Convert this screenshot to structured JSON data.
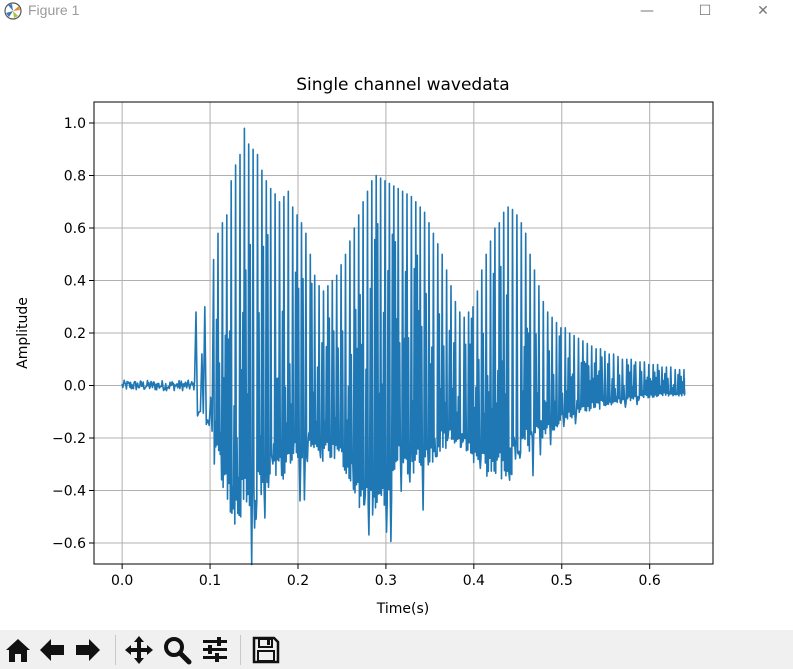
{
  "window": {
    "title": "Figure 1",
    "controls": {
      "minimize": "—",
      "maximize": "☐",
      "close": "✕"
    }
  },
  "toolbar": {
    "buttons": [
      {
        "icon": "home-icon"
      },
      {
        "icon": "back-arrow-icon"
      },
      {
        "icon": "forward-arrow-icon"
      },
      {
        "icon": "pan-icon"
      },
      {
        "icon": "zoom-icon"
      },
      {
        "icon": "configure-subplots-icon"
      },
      {
        "icon": "save-icon"
      }
    ]
  },
  "colors": {
    "line": "#1f77b4",
    "grid": "#b0b0b0",
    "axes": "#000000"
  },
  "chart_data": {
    "type": "line",
    "title": "Single channel wavedata",
    "xlabel": "Time(s)",
    "ylabel": "Amplitude",
    "xlim": [
      -0.032,
      0.672
    ],
    "ylim": [
      -0.68,
      1.08
    ],
    "xticks": [
      0.0,
      0.1,
      0.2,
      0.3,
      0.4,
      0.5,
      0.6
    ],
    "xtick_labels": [
      "0.0",
      "0.1",
      "0.2",
      "0.3",
      "0.4",
      "0.5",
      "0.6"
    ],
    "yticks": [
      -0.6,
      -0.4,
      -0.2,
      0.0,
      0.2,
      0.4,
      0.6,
      0.8,
      1.0
    ],
    "ytick_labels": [
      "−0.6",
      "−0.4",
      "−0.2",
      "0.0",
      "0.2",
      "0.4",
      "0.6",
      "0.8",
      "1.0"
    ],
    "grid": true,
    "series": [
      {
        "name": "wavedata",
        "x_start": 0.0,
        "x_end": 0.64,
        "signal_onset": 0.083,
        "silence_amplitude": 0.02,
        "peak_times": [
          0.084,
          0.094,
          0.104,
          0.109,
          0.114,
          0.119,
          0.124,
          0.129,
          0.134,
          0.139,
          0.144,
          0.149,
          0.154,
          0.159,
          0.164,
          0.169,
          0.174,
          0.179,
          0.184,
          0.189,
          0.194,
          0.199,
          0.204,
          0.209,
          0.214,
          0.219,
          0.224,
          0.229,
          0.234,
          0.239,
          0.244,
          0.249,
          0.254,
          0.259,
          0.264,
          0.269,
          0.274,
          0.279,
          0.284,
          0.289,
          0.294,
          0.299,
          0.304,
          0.309,
          0.314,
          0.319,
          0.324,
          0.329,
          0.334,
          0.339,
          0.344,
          0.349,
          0.354,
          0.359,
          0.364,
          0.369,
          0.374,
          0.379,
          0.384,
          0.389,
          0.394,
          0.399,
          0.404,
          0.409,
          0.414,
          0.419,
          0.424,
          0.429,
          0.434,
          0.439,
          0.444,
          0.449,
          0.454,
          0.459,
          0.464,
          0.469,
          0.474,
          0.479,
          0.484,
          0.489,
          0.494,
          0.499,
          0.504,
          0.509,
          0.514,
          0.519,
          0.524,
          0.529,
          0.534,
          0.539,
          0.544,
          0.549,
          0.554,
          0.559,
          0.564,
          0.569,
          0.574,
          0.579,
          0.584,
          0.589,
          0.594,
          0.599,
          0.604,
          0.609,
          0.614,
          0.619,
          0.624,
          0.629,
          0.634,
          0.639
        ],
        "peak_values": [
          0.28,
          0.3,
          0.48,
          0.58,
          0.62,
          0.65,
          0.78,
          0.84,
          0.88,
          0.98,
          0.92,
          0.9,
          0.88,
          0.82,
          0.78,
          0.75,
          0.73,
          0.7,
          0.72,
          0.74,
          0.68,
          0.65,
          0.62,
          0.58,
          0.5,
          0.42,
          0.38,
          0.36,
          0.38,
          0.4,
          0.42,
          0.46,
          0.5,
          0.55,
          0.6,
          0.65,
          0.7,
          0.74,
          0.78,
          0.8,
          0.79,
          0.78,
          0.77,
          0.76,
          0.75,
          0.74,
          0.73,
          0.72,
          0.7,
          0.68,
          0.66,
          0.62,
          0.58,
          0.54,
          0.5,
          0.44,
          0.38,
          0.32,
          0.28,
          0.26,
          0.28,
          0.3,
          0.36,
          0.44,
          0.5,
          0.55,
          0.6,
          0.62,
          0.66,
          0.68,
          0.67,
          0.65,
          0.62,
          0.58,
          0.5,
          0.44,
          0.38,
          0.32,
          0.28,
          0.26,
          0.24,
          0.22,
          0.22,
          0.2,
          0.19,
          0.18,
          0.17,
          0.16,
          0.15,
          0.14,
          0.14,
          0.13,
          0.12,
          0.12,
          0.11,
          0.1,
          0.1,
          0.1,
          0.09,
          0.09,
          0.09,
          0.08,
          0.08,
          0.08,
          0.07,
          0.07,
          0.07,
          0.06,
          0.06,
          0.06
        ],
        "trough_values": [
          -0.12,
          -0.2,
          -0.3,
          -0.36,
          -0.42,
          -0.5,
          -0.58,
          -0.55,
          -0.52,
          -0.5,
          -0.48,
          -0.46,
          -0.45,
          -0.44,
          -0.42,
          -0.4,
          -0.38,
          -0.36,
          -0.35,
          -0.34,
          -0.33,
          -0.32,
          -0.32,
          -0.31,
          -0.3,
          -0.3,
          -0.29,
          -0.29,
          -0.29,
          -0.3,
          -0.31,
          -0.33,
          -0.36,
          -0.4,
          -0.44,
          -0.48,
          -0.5,
          -0.52,
          -0.53,
          -0.52,
          -0.5,
          -0.47,
          -0.44,
          -0.4,
          -0.36,
          -0.34,
          -0.34,
          -0.34,
          -0.34,
          -0.33,
          -0.32,
          -0.3,
          -0.28,
          -0.26,
          -0.24,
          -0.22,
          -0.22,
          -0.23,
          -0.24,
          -0.26,
          -0.28,
          -0.3,
          -0.32,
          -0.34,
          -0.36,
          -0.38,
          -0.38,
          -0.37,
          -0.36,
          -0.34,
          -0.32,
          -0.3,
          -0.28,
          -0.26,
          -0.24,
          -0.22,
          -0.2,
          -0.19,
          -0.18,
          -0.17,
          -0.16,
          -0.15,
          -0.14,
          -0.13,
          -0.12,
          -0.11,
          -0.1,
          -0.1,
          -0.09,
          -0.09,
          -0.08,
          -0.08,
          -0.08,
          -0.07,
          -0.07,
          -0.07,
          -0.06,
          -0.06,
          -0.06,
          -0.05,
          -0.05,
          -0.05,
          -0.05,
          -0.04,
          -0.04,
          -0.04,
          -0.04,
          -0.04,
          -0.04,
          -0.04
        ]
      }
    ]
  }
}
